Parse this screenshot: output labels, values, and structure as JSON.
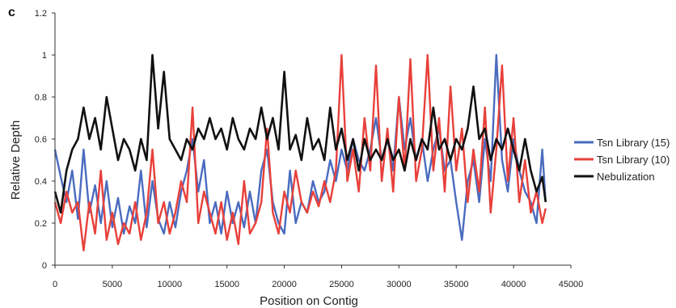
{
  "panel_label": "c",
  "chart_data": {
    "type": "line",
    "title": "",
    "xlabel": "Position on Contig",
    "ylabel": "Relative Depth",
    "xlim": [
      0,
      45000
    ],
    "ylim": [
      0,
      1.2
    ],
    "x_ticks": [
      "0",
      "5000",
      "10000",
      "15000",
      "20000",
      "25000",
      "30000",
      "35000",
      "40000",
      "45000"
    ],
    "y_ticks": [
      "0",
      "0.2",
      "0.4",
      "0.6",
      "0.8",
      "1",
      "1.2"
    ],
    "grid": false,
    "legend_position": "right",
    "x": [
      0,
      500,
      1000,
      1500,
      2000,
      2500,
      3000,
      3500,
      4000,
      4500,
      5000,
      5500,
      6000,
      6500,
      7000,
      7500,
      8000,
      8500,
      9000,
      9500,
      10000,
      10500,
      11000,
      11500,
      12000,
      12500,
      13000,
      13500,
      14000,
      14500,
      15000,
      15500,
      16000,
      16500,
      17000,
      17500,
      18000,
      18500,
      19000,
      19500,
      20000,
      20500,
      21000,
      21500,
      22000,
      22500,
      23000,
      23500,
      24000,
      24500,
      25000,
      25500,
      26000,
      26500,
      27000,
      27500,
      28000,
      28500,
      29000,
      29500,
      30000,
      30500,
      31000,
      31500,
      32000,
      32500,
      33000,
      33500,
      34000,
      34500,
      35000,
      35500,
      36000,
      36500,
      37000,
      37500,
      38000,
      38500,
      39000,
      39500,
      40000,
      40500,
      41000,
      41500,
      42000,
      42500,
      42800
    ],
    "series": [
      {
        "name": "Tsn Library (15)",
        "color": "#4a6bbf",
        "values": [
          0.55,
          0.42,
          0.3,
          0.45,
          0.22,
          0.55,
          0.25,
          0.38,
          0.2,
          0.4,
          0.18,
          0.32,
          0.15,
          0.28,
          0.2,
          0.45,
          0.18,
          0.4,
          0.22,
          0.15,
          0.3,
          0.18,
          0.35,
          0.45,
          0.6,
          0.35,
          0.5,
          0.2,
          0.3,
          0.15,
          0.35,
          0.2,
          0.3,
          0.18,
          0.35,
          0.2,
          0.45,
          0.55,
          0.3,
          0.2,
          0.15,
          0.45,
          0.2,
          0.3,
          0.25,
          0.4,
          0.3,
          0.35,
          0.5,
          0.4,
          0.55,
          0.45,
          0.6,
          0.5,
          0.45,
          0.55,
          0.7,
          0.5,
          0.6,
          0.45,
          0.8,
          0.55,
          0.7,
          0.5,
          0.6,
          0.4,
          0.55,
          0.65,
          0.45,
          0.5,
          0.3,
          0.12,
          0.4,
          0.5,
          0.3,
          0.6,
          0.4,
          1.0,
          0.5,
          0.35,
          0.6,
          0.45,
          0.35,
          0.3,
          0.2,
          0.55,
          0.3
        ]
      },
      {
        "name": "Tsn Library (10)",
        "color": "#e8403a",
        "values": [
          0.3,
          0.2,
          0.35,
          0.25,
          0.3,
          0.07,
          0.3,
          0.15,
          0.45,
          0.12,
          0.25,
          0.1,
          0.2,
          0.15,
          0.3,
          0.12,
          0.25,
          0.55,
          0.2,
          0.3,
          0.15,
          0.25,
          0.4,
          0.3,
          0.75,
          0.2,
          0.35,
          0.25,
          0.15,
          0.3,
          0.12,
          0.25,
          0.1,
          0.4,
          0.15,
          0.2,
          0.3,
          0.65,
          0.25,
          0.15,
          0.35,
          0.25,
          0.45,
          0.3,
          0.25,
          0.35,
          0.28,
          0.4,
          0.3,
          0.45,
          1.0,
          0.4,
          0.55,
          0.35,
          0.7,
          0.45,
          0.95,
          0.4,
          0.65,
          0.35,
          0.8,
          0.45,
          0.98,
          0.4,
          0.55,
          1.0,
          0.45,
          0.7,
          0.35,
          0.85,
          0.45,
          0.65,
          0.3,
          0.55,
          0.35,
          0.75,
          0.25,
          0.55,
          0.95,
          0.4,
          0.7,
          0.3,
          0.5,
          0.25,
          0.35,
          0.2,
          0.27
        ]
      },
      {
        "name": "Nebulization",
        "color": "#111111",
        "values": [
          0.35,
          0.25,
          0.45,
          0.55,
          0.6,
          0.75,
          0.6,
          0.7,
          0.55,
          0.8,
          0.65,
          0.5,
          0.6,
          0.55,
          0.45,
          0.6,
          0.5,
          1.0,
          0.65,
          0.92,
          0.6,
          0.55,
          0.5,
          0.6,
          0.55,
          0.65,
          0.6,
          0.7,
          0.6,
          0.65,
          0.55,
          0.7,
          0.6,
          0.55,
          0.65,
          0.6,
          0.75,
          0.6,
          0.7,
          0.55,
          0.92,
          0.55,
          0.62,
          0.5,
          0.7,
          0.55,
          0.6,
          0.5,
          0.75,
          0.55,
          0.65,
          0.5,
          0.6,
          0.45,
          0.6,
          0.5,
          0.55,
          0.5,
          0.6,
          0.5,
          0.55,
          0.45,
          0.6,
          0.5,
          0.6,
          0.55,
          0.75,
          0.55,
          0.6,
          0.5,
          0.6,
          0.55,
          0.65,
          0.85,
          0.6,
          0.65,
          0.5,
          0.6,
          0.55,
          0.65,
          0.55,
          0.45,
          0.6,
          0.45,
          0.35,
          0.42,
          0.3
        ]
      }
    ]
  }
}
